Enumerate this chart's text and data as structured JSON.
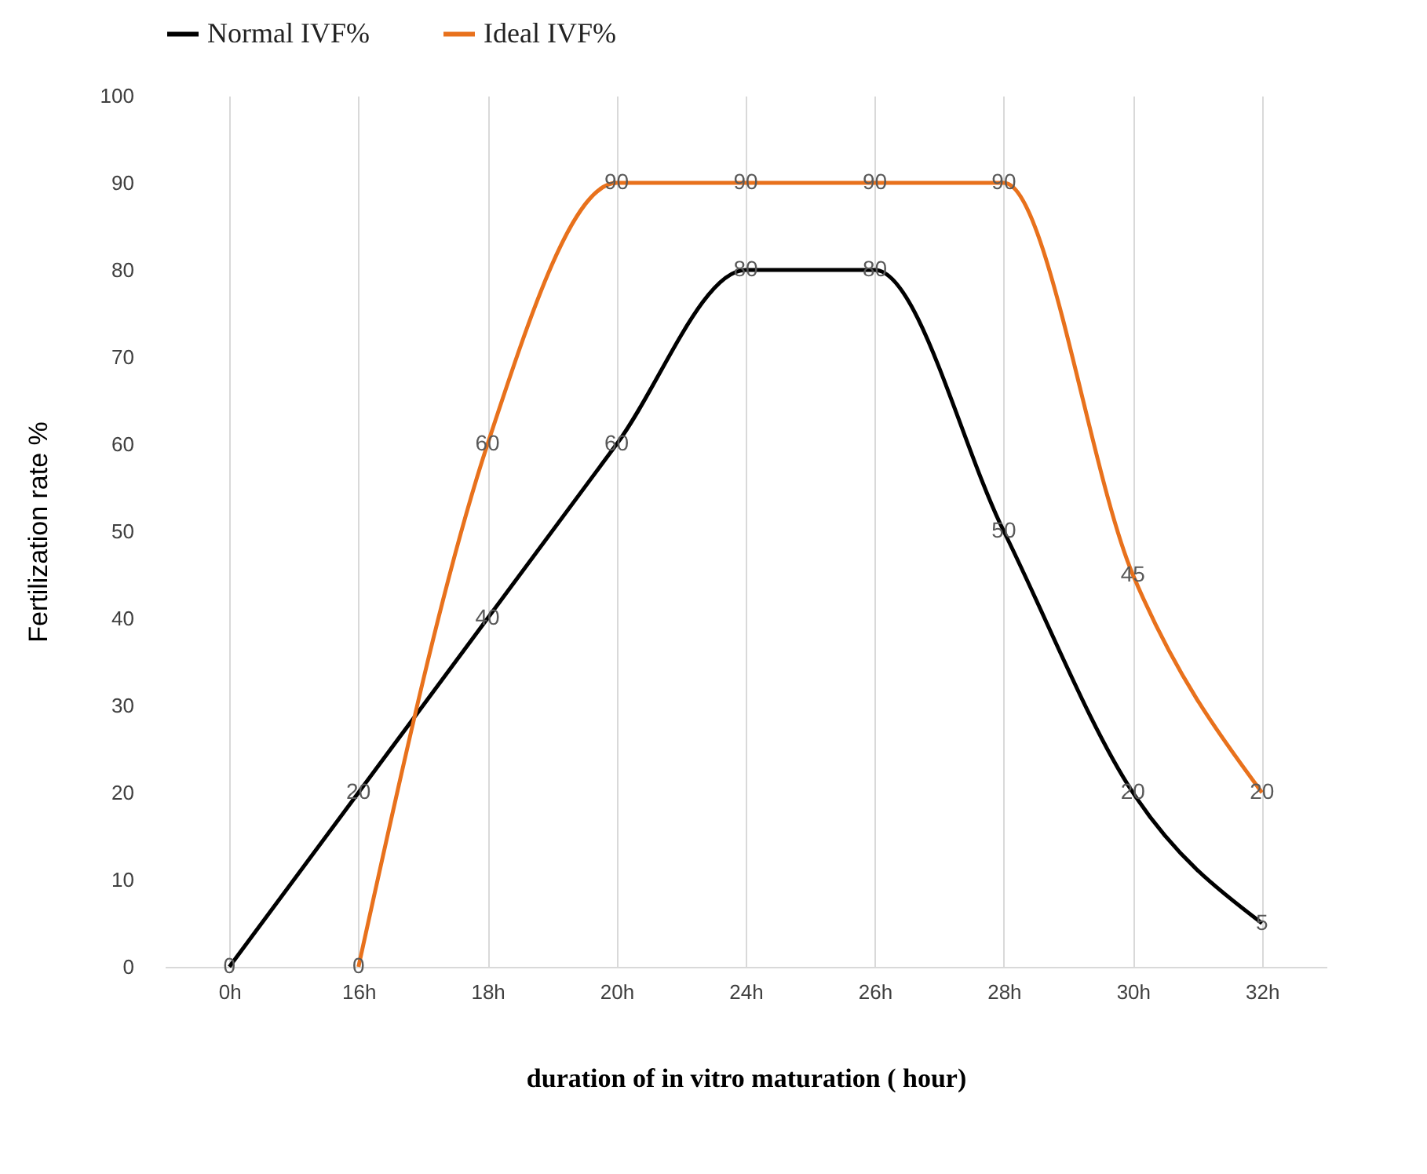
{
  "chart_data": {
    "type": "line",
    "xlabel": "duration  of in vitro maturation  ( hour)",
    "ylabel": "Fertilization rate %",
    "categories": [
      "0h",
      "16h",
      "18h",
      "20h",
      "24h",
      "26h",
      "28h",
      "30h",
      "32h"
    ],
    "series": [
      {
        "name": "Normal IVF%",
        "color": "#000000",
        "values": [
          0,
          20,
          40,
          60,
          80,
          80,
          50,
          20,
          5
        ]
      },
      {
        "name": "Ideal IVF%",
        "color": "#e8711c",
        "values": [
          null,
          0,
          60,
          90,
          90,
          90,
          90,
          45,
          20
        ]
      }
    ],
    "ylim": [
      0,
      100
    ],
    "yticks": [
      0,
      10,
      20,
      30,
      40,
      50,
      60,
      70,
      80,
      90,
      100
    ],
    "grid": "x",
    "legend": "top",
    "data_labels": true,
    "marker": "none",
    "line_style": "solid"
  }
}
